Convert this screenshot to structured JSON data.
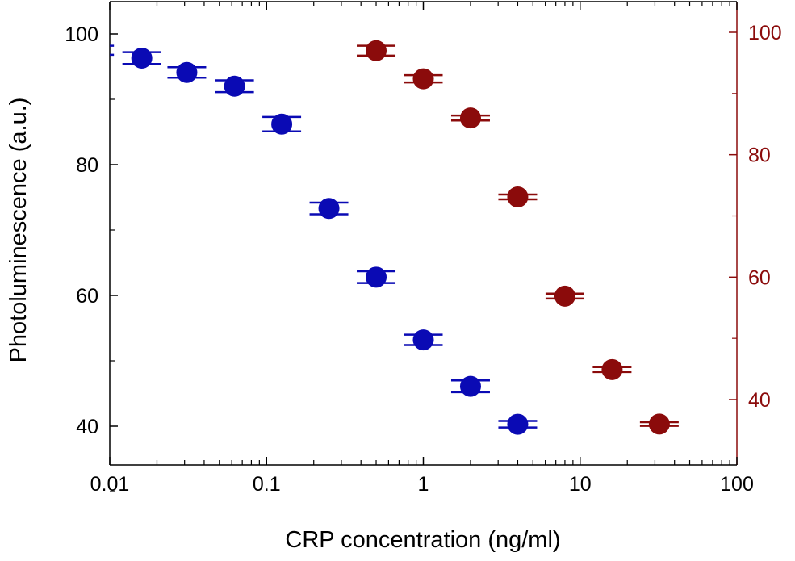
{
  "chart_data": {
    "type": "scatter",
    "xlabel": "CRP concentration (ng/ml)",
    "ylabel_left": "Photoluminescence (a.u.)",
    "ylabel_right": "",
    "x_scale": "log",
    "xlim": [
      0.01,
      100
    ],
    "ylim_left": [
      30,
      105
    ],
    "ylim_right": [
      30,
      105
    ],
    "x_ticks": [
      "0.01",
      "0.1",
      "1",
      "10",
      "100"
    ],
    "y_ticks_left": [
      "40",
      "60",
      "80",
      "100"
    ],
    "y_ticks_right": [
      "40",
      "60",
      "80",
      "100"
    ],
    "grid": false,
    "legend": "none",
    "series": [
      {
        "axis": "left",
        "color": "#0a0ab4",
        "x": [
          0.008,
          0.016,
          0.031,
          0.0625,
          0.125,
          0.25,
          0.5,
          1,
          2,
          4
        ],
        "y": [
          97.5,
          96.3,
          94.1,
          92.0,
          86.2,
          73.3,
          62.8,
          53.2,
          46.1,
          40.3
        ],
        "err": [
          0.7,
          0.9,
          0.8,
          0.9,
          1.1,
          0.9,
          0.9,
          0.8,
          0.9,
          0.5
        ]
      },
      {
        "axis": "right",
        "color": "#8b0b0b",
        "x": [
          0.5,
          1,
          2,
          4,
          8,
          16,
          32
        ],
        "y": [
          97.0,
          92.4,
          86.0,
          73.1,
          56.9,
          44.9,
          36.0
        ],
        "err": [
          0.8,
          0.6,
          0.4,
          0.4,
          0.4,
          0.4,
          0.3
        ]
      }
    ]
  }
}
